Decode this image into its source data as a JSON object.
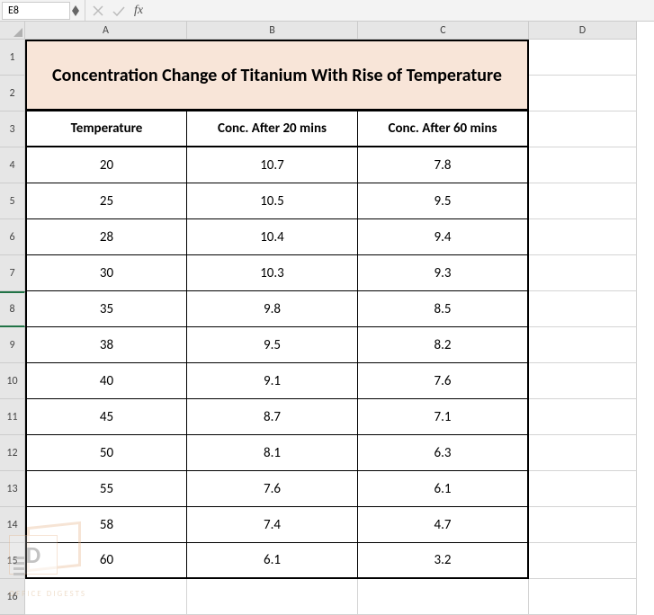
{
  "formula_bar": {
    "name_box": "E8",
    "fx_label": "fx"
  },
  "columns": [
    "A",
    "B",
    "C",
    "D"
  ],
  "row_count": 16,
  "title": "Concentration Change of Titanium With Rise of Temperature",
  "title_bg": "#f8e5d8",
  "headers": [
    "Temperature",
    "Conc. After 20 mins",
    "Conc. After 60 mins"
  ],
  "rows": [
    [
      20,
      10.7,
      7.8
    ],
    [
      25,
      10.5,
      9.5
    ],
    [
      28,
      10.4,
      9.4
    ],
    [
      30,
      10.3,
      9.3
    ],
    [
      35,
      9.8,
      8.5
    ],
    [
      38,
      9.5,
      8.2
    ],
    [
      40,
      9.1,
      7.6
    ],
    [
      45,
      8.7,
      7.1
    ],
    [
      50,
      8.1,
      6.3
    ],
    [
      55,
      7.6,
      6.1
    ],
    [
      58,
      7.4,
      4.7
    ],
    [
      60,
      6.1,
      3.2
    ]
  ],
  "selected_row": 8,
  "watermark": {
    "letter": "D",
    "text": "OFFICE DIGESTS"
  }
}
